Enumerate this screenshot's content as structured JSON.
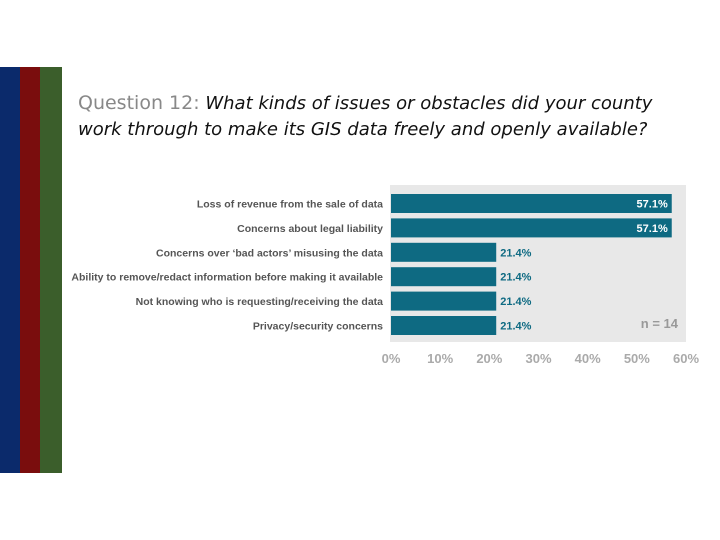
{
  "colors": {
    "stripe_blue": "#0b2a6b",
    "stripe_red": "#7a0d0d",
    "stripe_green": "#3b5e2b",
    "bar": "#0e6a82",
    "plot_bg": "#e8e8e8"
  },
  "title": {
    "lead": "Question 12:",
    "question": "What kinds of issues or obstacles did your county work through to make its GIS data freely and openly available?"
  },
  "chart_data": {
    "type": "bar",
    "orientation": "horizontal",
    "categories": [
      "Loss of revenue from the sale of data",
      "Concerns about legal liability",
      "Concerns over ‘bad actors’ misusing the data",
      "Ability to remove/redact information before making it available",
      "Not knowing who is requesting/receiving the data",
      "Privacy/security concerns"
    ],
    "values": [
      57.1,
      57.1,
      21.4,
      21.4,
      21.4,
      21.4
    ],
    "data_labels": [
      "57.1%",
      "57.1%",
      "21.4%",
      "21.4%",
      "21.4%",
      "21.4%"
    ],
    "xlim": [
      0,
      60
    ],
    "x_ticks": [
      "0%",
      "10%",
      "20%",
      "30%",
      "40%",
      "50%",
      "60%"
    ],
    "annotation": "n = 14",
    "grid": false
  }
}
